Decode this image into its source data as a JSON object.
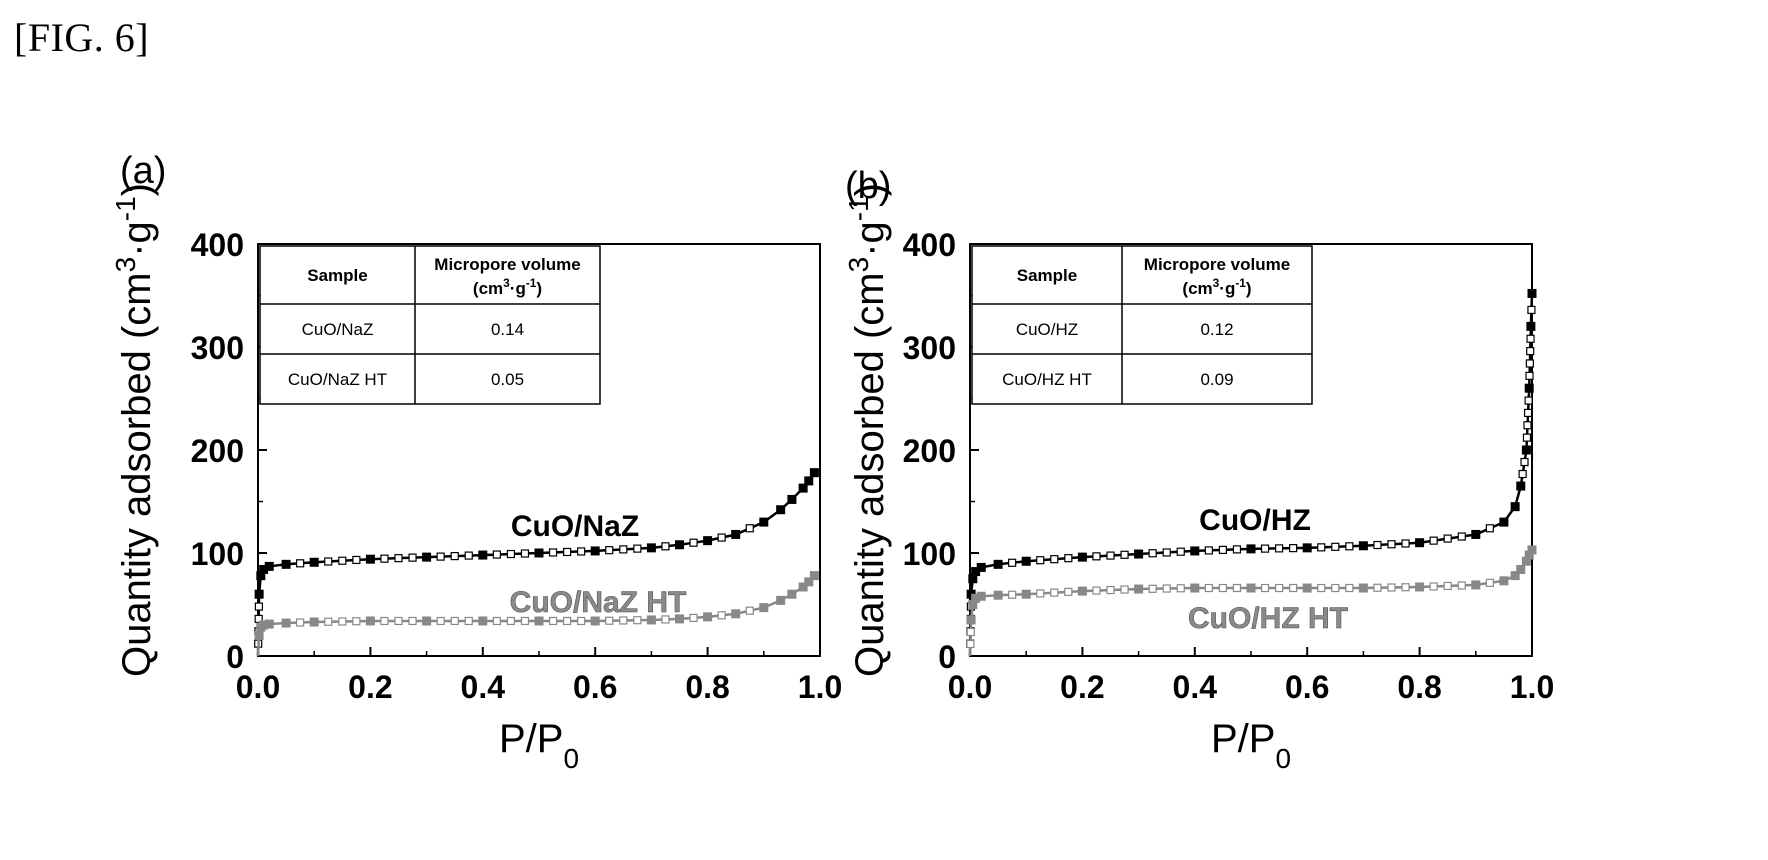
{
  "figure_label": "[FIG. 6]",
  "chart_data": [
    {
      "type": "line",
      "panel": "(a)",
      "xlabel": "P/P0",
      "ylabel": "Quantity adsorbed (cm3·g-1)",
      "xlim": [
        0,
        1.0
      ],
      "ylim": [
        0,
        400
      ],
      "x_ticks": [
        "0.0",
        "0.2",
        "0.4",
        "0.6",
        "0.8",
        "1.0"
      ],
      "y_ticks": [
        "0",
        "100",
        "200",
        "300",
        "400"
      ],
      "grid": false,
      "series": [
        {
          "name": "CuO/NaZ",
          "color": "#000000",
          "x": [
            0.0,
            0.002,
            0.005,
            0.01,
            0.02,
            0.05,
            0.1,
            0.2,
            0.3,
            0.4,
            0.5,
            0.6,
            0.7,
            0.75,
            0.8,
            0.85,
            0.9,
            0.93,
            0.95,
            0.97,
            0.98,
            0.99
          ],
          "y": [
            0,
            60,
            78,
            84,
            87,
            89,
            91,
            94,
            96,
            98,
            100,
            102,
            105,
            108,
            112,
            118,
            130,
            142,
            152,
            163,
            170,
            178
          ]
        },
        {
          "name": "CuO/NaZ HT",
          "color": "#888888",
          "x": [
            0.0,
            0.002,
            0.005,
            0.01,
            0.02,
            0.05,
            0.1,
            0.2,
            0.3,
            0.4,
            0.5,
            0.6,
            0.7,
            0.75,
            0.8,
            0.85,
            0.9,
            0.93,
            0.95,
            0.97,
            0.98,
            0.99
          ],
          "y": [
            0,
            20,
            28,
            30,
            31,
            32,
            33,
            34,
            34,
            34,
            34,
            34,
            35,
            36,
            38,
            41,
            47,
            54,
            60,
            67,
            72,
            78
          ]
        }
      ],
      "table": {
        "headers": [
          "Sample",
          "Micropore volume",
          "(cm3·g-1)"
        ],
        "rows": [
          [
            "CuO/NaZ",
            "0.14"
          ],
          [
            "CuO/NaZ HT",
            "0.05"
          ]
        ]
      }
    },
    {
      "type": "line",
      "panel": "(b)",
      "xlabel": "P/P0",
      "ylabel": "Quantity adsorbed (cm3·g-1)",
      "xlim": [
        0,
        1.0
      ],
      "ylim": [
        0,
        400
      ],
      "x_ticks": [
        "0.0",
        "0.2",
        "0.4",
        "0.6",
        "0.8",
        "1.0"
      ],
      "y_ticks": [
        "0",
        "100",
        "200",
        "300",
        "400"
      ],
      "grid": false,
      "series": [
        {
          "name": "CuO/HZ",
          "color": "#000000",
          "x": [
            0.0,
            0.002,
            0.005,
            0.01,
            0.02,
            0.05,
            0.1,
            0.2,
            0.3,
            0.4,
            0.5,
            0.6,
            0.7,
            0.8,
            0.9,
            0.95,
            0.97,
            0.98,
            0.99,
            0.995,
            0.998,
            1.0
          ],
          "y": [
            0,
            60,
            75,
            82,
            86,
            89,
            92,
            96,
            99,
            102,
            104,
            105,
            107,
            110,
            118,
            130,
            145,
            165,
            200,
            260,
            320,
            352
          ]
        },
        {
          "name": "CuO/HZ HT",
          "color": "#888888",
          "x": [
            0.0,
            0.002,
            0.005,
            0.01,
            0.02,
            0.05,
            0.1,
            0.2,
            0.3,
            0.4,
            0.5,
            0.6,
            0.7,
            0.8,
            0.9,
            0.95,
            0.97,
            0.98,
            0.99,
            0.995,
            1.0
          ],
          "y": [
            0,
            35,
            50,
            56,
            58,
            59,
            60,
            63,
            65,
            66,
            66,
            66,
            66,
            67,
            69,
            73,
            78,
            84,
            92,
            98,
            103
          ]
        }
      ],
      "table": {
        "headers": [
          "Sample",
          "Micropore volume",
          "(cm3·g-1)"
        ],
        "rows": [
          [
            "CuO/HZ",
            "0.12"
          ],
          [
            "CuO/HZ HT",
            "0.09"
          ]
        ]
      }
    }
  ]
}
